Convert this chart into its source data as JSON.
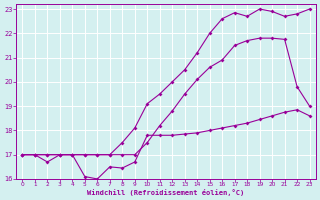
{
  "xlabel": "Windchill (Refroidissement éolien,°C)",
  "x": [
    0,
    1,
    2,
    3,
    4,
    5,
    6,
    7,
    8,
    9,
    10,
    11,
    12,
    13,
    14,
    15,
    16,
    17,
    18,
    19,
    20,
    21,
    22,
    23
  ],
  "line1": [
    17.0,
    17.0,
    16.7,
    17.0,
    17.0,
    16.1,
    16.0,
    16.5,
    16.45,
    16.7,
    17.8,
    17.8,
    17.8,
    17.85,
    17.9,
    18.0,
    18.1,
    18.2,
    18.3,
    18.45,
    18.6,
    18.75,
    18.85,
    18.6
  ],
  "line2": [
    17.0,
    17.0,
    17.0,
    17.0,
    17.0,
    17.0,
    17.0,
    17.0,
    17.0,
    17.0,
    17.5,
    18.2,
    18.8,
    19.5,
    20.1,
    20.6,
    20.9,
    21.5,
    21.7,
    21.8,
    21.8,
    21.75,
    19.8,
    19.0
  ],
  "line3": [
    17.0,
    17.0,
    17.0,
    17.0,
    17.0,
    17.0,
    17.0,
    17.0,
    17.5,
    18.1,
    19.1,
    19.5,
    20.0,
    20.5,
    21.2,
    22.0,
    22.6,
    22.85,
    22.7,
    23.0,
    22.9,
    22.7,
    22.8,
    23.0
  ],
  "line_color": "#990099",
  "bg_color": "#d4f0f0",
  "grid_color": "#aad8d8",
  "ylim_min": 16.0,
  "ylim_max": 23.2,
  "xlim_min": -0.5,
  "xlim_max": 23.5,
  "yticks": [
    16,
    17,
    18,
    19,
    20,
    21,
    22,
    23
  ],
  "xticks": [
    0,
    1,
    2,
    3,
    4,
    5,
    6,
    7,
    8,
    9,
    10,
    11,
    12,
    13,
    14,
    15,
    16,
    17,
    18,
    19,
    20,
    21,
    22,
    23
  ]
}
